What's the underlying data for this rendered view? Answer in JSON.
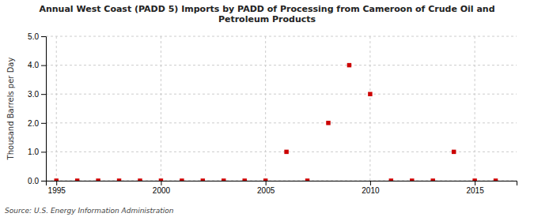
{
  "chart_data": {
    "type": "scatter",
    "title": "Annual West Coast (PADD 5) Imports by PADD of Processing from Cameroon of Crude Oil and\nPetroleum Products",
    "ylabel": "Thousand Barrels per Day",
    "source": "Source: U.S. Energy Information Administration",
    "x": [
      1995,
      1996,
      1997,
      1998,
      1999,
      2000,
      2001,
      2002,
      2003,
      2004,
      2005,
      2006,
      2007,
      2008,
      2009,
      2010,
      2011,
      2012,
      2013,
      2014,
      2015,
      2016
    ],
    "values": [
      0.0,
      0.0,
      0.0,
      0.0,
      0.0,
      0.0,
      0.0,
      0.0,
      0.0,
      0.0,
      0.0,
      1.0,
      0.0,
      2.0,
      4.0,
      3.0,
      0.0,
      0.0,
      0.0,
      1.0,
      0.0,
      0.0
    ],
    "color": "#cc0000",
    "marker": "square",
    "xlim": [
      1994.5,
      2017
    ],
    "ylim": [
      0.0,
      5.0
    ],
    "xticks": [
      1995,
      2000,
      2005,
      2010,
      2015
    ],
    "yticks": [
      {
        "value": 0.0,
        "label": "0.0"
      },
      {
        "value": 1.0,
        "label": "1.0"
      },
      {
        "value": 2.0,
        "label": "2.0"
      },
      {
        "value": 3.0,
        "label": "3.0"
      },
      {
        "value": 4.0,
        "label": "4.0"
      },
      {
        "value": 5.0,
        "label": "5.0"
      }
    ],
    "grid": true
  }
}
